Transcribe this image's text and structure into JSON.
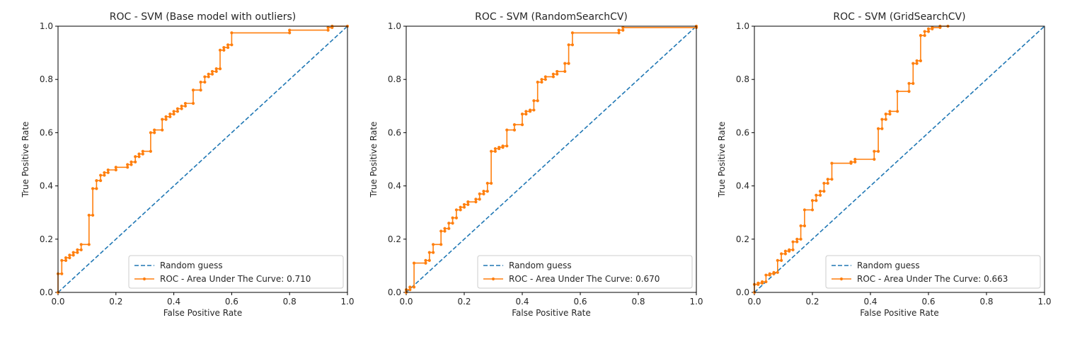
{
  "colors": {
    "roc": "#ff7f0e",
    "random": "#1f77b4",
    "axes": "#000000",
    "legend_frame": "#cccccc"
  },
  "chart_data": [
    {
      "type": "line",
      "title": "ROC - SVM (Base model with outliers)",
      "xlabel": "False Positive Rate",
      "ylabel": "True Positive Rate",
      "xlim": [
        0,
        1
      ],
      "ylim": [
        0,
        1
      ],
      "xticks": [
        "0.0",
        "0.2",
        "0.4",
        "0.6",
        "0.8",
        "1.0"
      ],
      "yticks": [
        "0.0",
        "0.2",
        "0.4",
        "0.6",
        "0.8",
        "1.0"
      ],
      "grid": false,
      "legend_position": "lower-right",
      "series": [
        {
          "name": "Random guess",
          "style": "dashed",
          "x": [
            0,
            1
          ],
          "y": [
            0,
            1
          ]
        },
        {
          "name": "ROC - Area Under The Curve: 0.710",
          "style": "solid-markers",
          "points": [
            [
              0,
              0
            ],
            [
              0,
              0.07
            ],
            [
              0.013,
              0.07
            ],
            [
              0.013,
              0.12
            ],
            [
              0.027,
              0.12
            ],
            [
              0.027,
              0.13
            ],
            [
              0.04,
              0.13
            ],
            [
              0.04,
              0.14
            ],
            [
              0.053,
              0.14
            ],
            [
              0.053,
              0.15
            ],
            [
              0.067,
              0.15
            ],
            [
              0.067,
              0.16
            ],
            [
              0.08,
              0.16
            ],
            [
              0.08,
              0.18
            ],
            [
              0.107,
              0.18
            ],
            [
              0.107,
              0.29
            ],
            [
              0.12,
              0.29
            ],
            [
              0.12,
              0.39
            ],
            [
              0.133,
              0.39
            ],
            [
              0.133,
              0.42
            ],
            [
              0.147,
              0.42
            ],
            [
              0.147,
              0.44
            ],
            [
              0.16,
              0.44
            ],
            [
              0.16,
              0.45
            ],
            [
              0.173,
              0.45
            ],
            [
              0.173,
              0.46
            ],
            [
              0.2,
              0.46
            ],
            [
              0.2,
              0.47
            ],
            [
              0.24,
              0.47
            ],
            [
              0.24,
              0.48
            ],
            [
              0.253,
              0.48
            ],
            [
              0.253,
              0.49
            ],
            [
              0.267,
              0.49
            ],
            [
              0.267,
              0.51
            ],
            [
              0.28,
              0.51
            ],
            [
              0.28,
              0.52
            ],
            [
              0.293,
              0.52
            ],
            [
              0.293,
              0.53
            ],
            [
              0.32,
              0.53
            ],
            [
              0.32,
              0.6
            ],
            [
              0.333,
              0.6
            ],
            [
              0.333,
              0.61
            ],
            [
              0.36,
              0.61
            ],
            [
              0.36,
              0.65
            ],
            [
              0.373,
              0.65
            ],
            [
              0.373,
              0.66
            ],
            [
              0.387,
              0.66
            ],
            [
              0.387,
              0.67
            ],
            [
              0.4,
              0.67
            ],
            [
              0.4,
              0.68
            ],
            [
              0.413,
              0.68
            ],
            [
              0.413,
              0.69
            ],
            [
              0.427,
              0.69
            ],
            [
              0.427,
              0.7
            ],
            [
              0.44,
              0.7
            ],
            [
              0.44,
              0.71
            ],
            [
              0.467,
              0.71
            ],
            [
              0.467,
              0.76
            ],
            [
              0.493,
              0.76
            ],
            [
              0.493,
              0.79
            ],
            [
              0.507,
              0.79
            ],
            [
              0.507,
              0.81
            ],
            [
              0.52,
              0.81
            ],
            [
              0.52,
              0.82
            ],
            [
              0.533,
              0.82
            ],
            [
              0.533,
              0.83
            ],
            [
              0.547,
              0.83
            ],
            [
              0.547,
              0.84
            ],
            [
              0.56,
              0.84
            ],
            [
              0.56,
              0.91
            ],
            [
              0.573,
              0.91
            ],
            [
              0.573,
              0.92
            ],
            [
              0.587,
              0.92
            ],
            [
              0.587,
              0.93
            ],
            [
              0.6,
              0.93
            ],
            [
              0.6,
              0.975
            ],
            [
              0.8,
              0.975
            ],
            [
              0.8,
              0.985
            ],
            [
              0.933,
              0.985
            ],
            [
              0.933,
              0.995
            ],
            [
              0.947,
              0.995
            ],
            [
              0.947,
              1.0
            ],
            [
              1.0,
              1.0
            ]
          ]
        }
      ]
    },
    {
      "type": "line",
      "title": "ROC - SVM (RandomSearchCV)",
      "xlabel": "False Positive Rate",
      "ylabel": "True Positive Rate",
      "xlim": [
        0,
        1
      ],
      "ylim": [
        0,
        1
      ],
      "xticks": [
        "0.0",
        "0.2",
        "0.4",
        "0.6",
        "0.8",
        "1.0"
      ],
      "yticks": [
        "0.0",
        "0.2",
        "0.4",
        "0.6",
        "0.8",
        "1.0"
      ],
      "grid": false,
      "legend_position": "lower-right",
      "series": [
        {
          "name": "Random guess",
          "style": "dashed",
          "x": [
            0,
            1
          ],
          "y": [
            0,
            1
          ]
        },
        {
          "name": "ROC - Area Under The Curve: 0.670",
          "style": "solid-markers",
          "points": [
            [
              0,
              0
            ],
            [
              0,
              0.01
            ],
            [
              0.013,
              0.01
            ],
            [
              0.013,
              0.02
            ],
            [
              0.027,
              0.02
            ],
            [
              0.027,
              0.11
            ],
            [
              0.067,
              0.11
            ],
            [
              0.067,
              0.12
            ],
            [
              0.08,
              0.12
            ],
            [
              0.08,
              0.15
            ],
            [
              0.093,
              0.15
            ],
            [
              0.093,
              0.18
            ],
            [
              0.12,
              0.18
            ],
            [
              0.12,
              0.23
            ],
            [
              0.133,
              0.23
            ],
            [
              0.133,
              0.24
            ],
            [
              0.147,
              0.24
            ],
            [
              0.147,
              0.26
            ],
            [
              0.16,
              0.26
            ],
            [
              0.16,
              0.28
            ],
            [
              0.173,
              0.28
            ],
            [
              0.173,
              0.31
            ],
            [
              0.187,
              0.31
            ],
            [
              0.187,
              0.32
            ],
            [
              0.2,
              0.32
            ],
            [
              0.2,
              0.33
            ],
            [
              0.213,
              0.33
            ],
            [
              0.213,
              0.34
            ],
            [
              0.24,
              0.34
            ],
            [
              0.24,
              0.35
            ],
            [
              0.253,
              0.35
            ],
            [
              0.253,
              0.37
            ],
            [
              0.267,
              0.37
            ],
            [
              0.267,
              0.38
            ],
            [
              0.28,
              0.38
            ],
            [
              0.28,
              0.41
            ],
            [
              0.293,
              0.41
            ],
            [
              0.293,
              0.53
            ],
            [
              0.307,
              0.53
            ],
            [
              0.307,
              0.54
            ],
            [
              0.32,
              0.54
            ],
            [
              0.32,
              0.545
            ],
            [
              0.333,
              0.545
            ],
            [
              0.333,
              0.55
            ],
            [
              0.347,
              0.55
            ],
            [
              0.347,
              0.61
            ],
            [
              0.373,
              0.61
            ],
            [
              0.373,
              0.63
            ],
            [
              0.4,
              0.63
            ],
            [
              0.4,
              0.67
            ],
            [
              0.413,
              0.67
            ],
            [
              0.413,
              0.68
            ],
            [
              0.427,
              0.68
            ],
            [
              0.427,
              0.685
            ],
            [
              0.44,
              0.685
            ],
            [
              0.44,
              0.72
            ],
            [
              0.453,
              0.72
            ],
            [
              0.453,
              0.79
            ],
            [
              0.467,
              0.79
            ],
            [
              0.467,
              0.8
            ],
            [
              0.48,
              0.8
            ],
            [
              0.48,
              0.81
            ],
            [
              0.507,
              0.81
            ],
            [
              0.507,
              0.82
            ],
            [
              0.52,
              0.82
            ],
            [
              0.52,
              0.83
            ],
            [
              0.547,
              0.83
            ],
            [
              0.547,
              0.86
            ],
            [
              0.56,
              0.86
            ],
            [
              0.56,
              0.93
            ],
            [
              0.573,
              0.93
            ],
            [
              0.573,
              0.975
            ],
            [
              0.733,
              0.975
            ],
            [
              0.733,
              0.985
            ],
            [
              0.747,
              0.985
            ],
            [
              0.747,
              0.995
            ],
            [
              1.0,
              0.995
            ],
            [
              1.0,
              1.0
            ]
          ]
        }
      ]
    },
    {
      "type": "line",
      "title": "ROC - SVM (GridSearchCV)",
      "xlabel": "False Positive Rate",
      "ylabel": "True Positive Rate",
      "xlim": [
        0,
        1
      ],
      "ylim": [
        0,
        1
      ],
      "xticks": [
        "0.0",
        "0.2",
        "0.4",
        "0.6",
        "0.8",
        "1.0"
      ],
      "yticks": [
        "0.0",
        "0.2",
        "0.4",
        "0.6",
        "0.8",
        "1.0"
      ],
      "grid": false,
      "legend_position": "lower-right",
      "series": [
        {
          "name": "Random guess",
          "style": "dashed",
          "x": [
            0,
            1
          ],
          "y": [
            0,
            1
          ]
        },
        {
          "name": "ROC - Area Under The Curve: 0.663",
          "style": "solid-markers",
          "points": [
            [
              0,
              0
            ],
            [
              0,
              0.03
            ],
            [
              0.013,
              0.03
            ],
            [
              0.013,
              0.035
            ],
            [
              0.027,
              0.035
            ],
            [
              0.027,
              0.04
            ],
            [
              0.04,
              0.04
            ],
            [
              0.04,
              0.065
            ],
            [
              0.053,
              0.065
            ],
            [
              0.053,
              0.07
            ],
            [
              0.067,
              0.07
            ],
            [
              0.067,
              0.075
            ],
            [
              0.08,
              0.075
            ],
            [
              0.08,
              0.12
            ],
            [
              0.093,
              0.12
            ],
            [
              0.093,
              0.145
            ],
            [
              0.107,
              0.145
            ],
            [
              0.107,
              0.155
            ],
            [
              0.12,
              0.155
            ],
            [
              0.12,
              0.16
            ],
            [
              0.133,
              0.16
            ],
            [
              0.133,
              0.19
            ],
            [
              0.147,
              0.19
            ],
            [
              0.147,
              0.2
            ],
            [
              0.16,
              0.2
            ],
            [
              0.16,
              0.25
            ],
            [
              0.173,
              0.25
            ],
            [
              0.173,
              0.31
            ],
            [
              0.2,
              0.31
            ],
            [
              0.2,
              0.345
            ],
            [
              0.213,
              0.345
            ],
            [
              0.213,
              0.365
            ],
            [
              0.227,
              0.365
            ],
            [
              0.227,
              0.38
            ],
            [
              0.24,
              0.38
            ],
            [
              0.24,
              0.41
            ],
            [
              0.253,
              0.41
            ],
            [
              0.253,
              0.425
            ],
            [
              0.267,
              0.425
            ],
            [
              0.267,
              0.485
            ],
            [
              0.333,
              0.485
            ],
            [
              0.333,
              0.49
            ],
            [
              0.347,
              0.49
            ],
            [
              0.347,
              0.5
            ],
            [
              0.413,
              0.5
            ],
            [
              0.413,
              0.53
            ],
            [
              0.427,
              0.53
            ],
            [
              0.427,
              0.615
            ],
            [
              0.44,
              0.615
            ],
            [
              0.44,
              0.65
            ],
            [
              0.453,
              0.65
            ],
            [
              0.453,
              0.67
            ],
            [
              0.467,
              0.67
            ],
            [
              0.467,
              0.68
            ],
            [
              0.493,
              0.68
            ],
            [
              0.493,
              0.755
            ],
            [
              0.533,
              0.755
            ],
            [
              0.533,
              0.785
            ],
            [
              0.547,
              0.785
            ],
            [
              0.547,
              0.86
            ],
            [
              0.56,
              0.86
            ],
            [
              0.56,
              0.87
            ],
            [
              0.573,
              0.87
            ],
            [
              0.573,
              0.965
            ],
            [
              0.587,
              0.965
            ],
            [
              0.587,
              0.98
            ],
            [
              0.6,
              0.98
            ],
            [
              0.6,
              0.99
            ],
            [
              0.613,
              0.99
            ],
            [
              0.613,
              0.995
            ],
            [
              0.64,
              0.995
            ],
            [
              0.64,
              1.0
            ],
            [
              0.667,
              1.0
            ]
          ]
        }
      ]
    }
  ]
}
